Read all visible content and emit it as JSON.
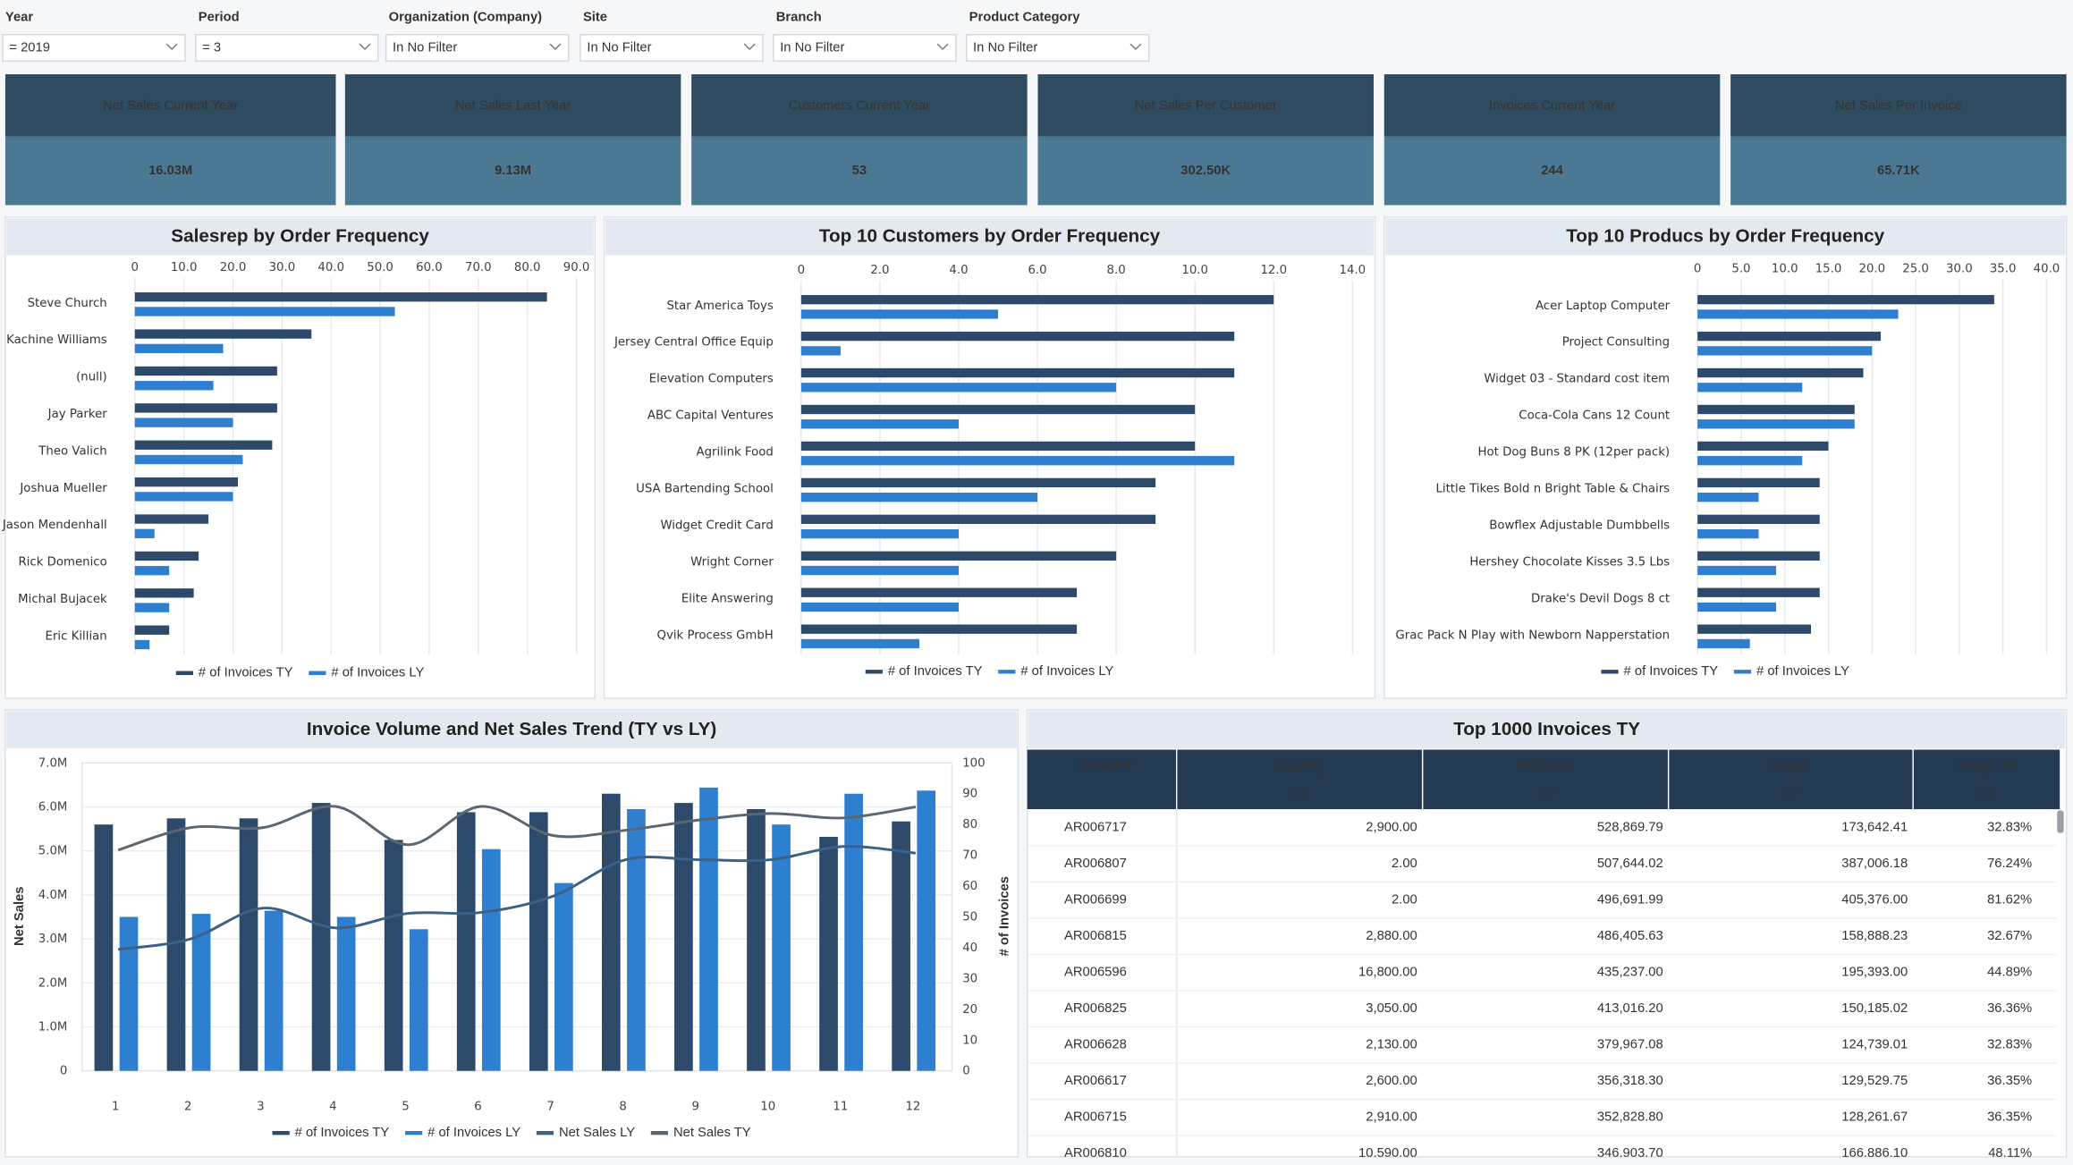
{
  "filters": [
    {
      "label": "Year",
      "value": "= 2019"
    },
    {
      "label": "Period",
      "value": "= 3"
    },
    {
      "label": "Organization (Company)",
      "value": "In No Filter"
    },
    {
      "label": "Site",
      "value": "In No Filter"
    },
    {
      "label": "Branch",
      "value": "In No Filter"
    },
    {
      "label": "Product Category",
      "value": "In No Filter"
    }
  ],
  "kpis": [
    {
      "title": "Net Sales Current Year",
      "value": "16.03M"
    },
    {
      "title": "Net Sales Last Year",
      "value": "9.13M"
    },
    {
      "title": "Customers Current Year",
      "value": "53"
    },
    {
      "title": "Net Sales Per Customer",
      "value": "302.50K"
    },
    {
      "title": "Invoices Current Year",
      "value": "244"
    },
    {
      "title": "Net Sales Per Invoice",
      "value": "65.71K"
    }
  ],
  "chart_data": [
    {
      "type": "bar",
      "horizontal": true,
      "title": "Salesrep by Order Frequency",
      "categories": [
        "Steve Church",
        "Kachine Williams",
        "(null)",
        "Jay Parker",
        "Theo Valich",
        "Joshua Mueller",
        "Jason Mendenhall",
        "Rick Domenico",
        "Michal Bujacek",
        "Eric Killian"
      ],
      "series": [
        {
          "name": "# of Invoices TY",
          "color": "#2e4a6b",
          "values": [
            84,
            36,
            29,
            29,
            28,
            21,
            15,
            13,
            12,
            7
          ]
        },
        {
          "name": "# of Invoices LY",
          "color": "#2f7fd0",
          "values": [
            53,
            18,
            16,
            20,
            22,
            20,
            4,
            7,
            7,
            3
          ]
        }
      ],
      "xlim": [
        0,
        90
      ],
      "xticks": [
        0,
        {
          "value": 10,
          "label": "10.0"
        },
        {
          "value": 20,
          "label": "20.0"
        },
        {
          "value": 30,
          "label": "30.0"
        },
        {
          "value": 40,
          "label": "40.0"
        },
        {
          "value": 50,
          "label": "50.0"
        },
        {
          "value": 60,
          "label": "60.0"
        },
        {
          "value": 70,
          "label": "70.0"
        },
        {
          "value": 80,
          "label": "80.0"
        },
        {
          "value": 90,
          "label": "90.0"
        }
      ],
      "grid": true,
      "legend": "bottom"
    },
    {
      "type": "bar",
      "horizontal": true,
      "title": "Top 10 Customers by Order Frequency",
      "categories": [
        "Star America Toys",
        "Jersey Central Office Equip",
        "Elevation Computers",
        "ABC Capital Ventures",
        "Agrilink Food",
        "USA Bartending School",
        "Widget Credit Card",
        "Wright Corner",
        "Elite Answering",
        "Qvik Process GmbH"
      ],
      "series": [
        {
          "name": "# of Invoices TY",
          "color": "#2e4a6b",
          "values": [
            12,
            11,
            11,
            10,
            10,
            9,
            9,
            8,
            7,
            7
          ]
        },
        {
          "name": "# of Invoices LY",
          "color": "#2f7fd0",
          "values": [
            5,
            1,
            8,
            4,
            11,
            6,
            4,
            4,
            4,
            3
          ]
        }
      ],
      "xlim": [
        0,
        14
      ],
      "xticks": [
        0,
        {
          "value": 2,
          "label": "2.0"
        },
        {
          "value": 4,
          "label": "4.0"
        },
        {
          "value": 6,
          "label": "6.0"
        },
        {
          "value": 8,
          "label": "8.0"
        },
        {
          "value": 10,
          "label": "10.0"
        },
        {
          "value": 12,
          "label": "12.0"
        },
        {
          "value": 14,
          "label": "14.0"
        }
      ],
      "grid": true,
      "legend": "bottom"
    },
    {
      "type": "bar",
      "horizontal": true,
      "title": "Top 10 Producs by Order Frequency",
      "categories": [
        "Acer Laptop Computer",
        "Project Consulting",
        "Widget 03 - Standard cost item",
        "Coca-Cola Cans 12 Count",
        "Hot Dog Buns 8 PK (12per pack)",
        "Little Tikes Bold n Bright Table & Chairs",
        "Bowflex Adjustable Dumbbells",
        "Hershey Chocolate Kisses 3.5 Lbs",
        "Drake's Devil Dogs 8 ct",
        "Grac Pack N Play with Newborn Napperstation"
      ],
      "series": [
        {
          "name": "# of Invoices TY",
          "color": "#2e4a6b",
          "values": [
            34,
            21,
            19,
            18,
            15,
            14,
            14,
            14,
            14,
            13
          ]
        },
        {
          "name": "# of Invoices LY",
          "color": "#2f7fd0",
          "values": [
            23,
            20,
            12,
            18,
            12,
            7,
            7,
            9,
            9,
            6
          ]
        }
      ],
      "xlim": [
        0,
        40
      ],
      "xticks": [
        0,
        {
          "value": 5,
          "label": "5.0"
        },
        {
          "value": 10,
          "label": "10.0"
        },
        {
          "value": 15,
          "label": "15.0"
        },
        {
          "value": 20,
          "label": "20.0"
        },
        {
          "value": 25,
          "label": "25.0"
        },
        {
          "value": 30,
          "label": "30.0"
        },
        {
          "value": 35,
          "label": "35.0"
        },
        {
          "value": 40,
          "label": "40.0"
        }
      ],
      "grid": true,
      "legend": "bottom"
    },
    {
      "type": "combo",
      "title": "Invoice Volume and Net Sales Trend (TY vs LY)",
      "categories": [
        "1",
        "2",
        "3",
        "4",
        "5",
        "6",
        "7",
        "8",
        "9",
        "10",
        "11",
        "12"
      ],
      "ylabel": "Net Sales",
      "y2label": "# of Invoices",
      "ylim": [
        0,
        7000000
      ],
      "yticks": [
        0,
        {
          "value": 1000000,
          "label": "1.0M"
        },
        {
          "value": 2000000,
          "label": "2.0M"
        },
        {
          "value": 3000000,
          "label": "3.0M"
        },
        {
          "value": 4000000,
          "label": "4.0M"
        },
        {
          "value": 5000000,
          "label": "5.0M"
        },
        {
          "value": 6000000,
          "label": "6.0M"
        },
        {
          "value": 7000000,
          "label": "7.0M"
        }
      ],
      "y2lim": [
        0,
        100
      ],
      "y2ticks": [
        0,
        10,
        20,
        30,
        40,
        50,
        60,
        70,
        80,
        90,
        100
      ],
      "series": [
        {
          "name": "# of Invoices TY",
          "type": "bar",
          "axis": "y2",
          "color": "#2e4a6b",
          "values": [
            80,
            82,
            82,
            87,
            75,
            84,
            84,
            90,
            87,
            85,
            76,
            81
          ]
        },
        {
          "name": "# of Invoices LY",
          "type": "bar",
          "axis": "y2",
          "color": "#2f7fd0",
          "values": [
            50,
            51,
            52,
            50,
            46,
            72,
            61,
            85,
            92,
            80,
            90,
            91
          ]
        },
        {
          "name": "Net Sales LY",
          "type": "line",
          "color": "#3b6186",
          "values": [
            2760000,
            3000000,
            3700000,
            3250000,
            3580000,
            3600000,
            3970000,
            4800000,
            4800000,
            4800000,
            5100000,
            4950000
          ]
        },
        {
          "name": "Net Sales TY",
          "type": "line",
          "color": "#5c6670",
          "values": [
            5020000,
            5530000,
            5530000,
            6010000,
            5140000,
            6010000,
            5350000,
            5470000,
            5700000,
            5850000,
            5750000,
            6000000
          ]
        }
      ],
      "grid": true,
      "legend": "bottom"
    }
  ],
  "table": {
    "title": "Top 1000 Invoices TY",
    "columns": [
      [
        "Invoice #"
      ],
      [
        "Quantity",
        "TY"
      ],
      [
        "Net Sales",
        "TY"
      ],
      [
        "Margin",
        "TY"
      ],
      [
        "Margin %",
        "TY"
      ]
    ],
    "rows": [
      [
        "AR006717",
        "2,900.00",
        "528,869.79",
        "173,642.41",
        "32.83%"
      ],
      [
        "AR006807",
        "2.00",
        "507,644.02",
        "387,006.18",
        "76.24%"
      ],
      [
        "AR006699",
        "2.00",
        "496,691.99",
        "405,376.00",
        "81.62%"
      ],
      [
        "AR006815",
        "2,880.00",
        "486,405.63",
        "158,888.23",
        "32.67%"
      ],
      [
        "AR006596",
        "16,800.00",
        "435,237.00",
        "195,393.00",
        "44.89%"
      ],
      [
        "AR006825",
        "3,050.00",
        "413,016.20",
        "150,185.02",
        "36.36%"
      ],
      [
        "AR006628",
        "2,130.00",
        "379,967.08",
        "124,739.01",
        "32.83%"
      ],
      [
        "AR006617",
        "2,600.00",
        "356,318.30",
        "129,529.75",
        "36.35%"
      ],
      [
        "AR006715",
        "2,910.00",
        "352,828.80",
        "128,261.67",
        "36.35%"
      ],
      [
        "AR006810",
        "10,590.00",
        "346,903.70",
        "166,886.10",
        "48.11%"
      ]
    ]
  }
}
